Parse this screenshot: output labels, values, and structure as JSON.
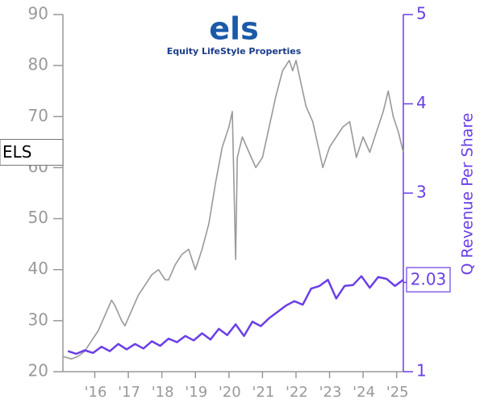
{
  "chart_data": {
    "type": "line",
    "logo_text": "els",
    "logo_subtitle": "Equity LifeStyle Properties",
    "y2label": "Q Revenue Per Share",
    "xlim": [
      2015.05,
      2025.2
    ],
    "xticks": [
      {
        "value": 2016,
        "label": "'16"
      },
      {
        "value": 2017,
        "label": "'17"
      },
      {
        "value": 2018,
        "label": "'18"
      },
      {
        "value": 2019,
        "label": "'19"
      },
      {
        "value": 2020,
        "label": "'20"
      },
      {
        "value": 2021,
        "label": "'21"
      },
      {
        "value": 2022,
        "label": "'22"
      },
      {
        "value": 2023,
        "label": "'23"
      },
      {
        "value": 2024,
        "label": "'24"
      },
      {
        "value": 2025,
        "label": "'25"
      }
    ],
    "ylim": [
      20,
      90
    ],
    "yticks": [
      20,
      30,
      40,
      50,
      60,
      70,
      80,
      90
    ],
    "y2lim": [
      1,
      5
    ],
    "y2ticks": [
      1,
      2,
      3,
      4,
      5
    ],
    "series": [
      {
        "name": "ELS",
        "color": "#999999",
        "axis": "y",
        "x": [
          2015.05,
          2015.3,
          2015.5,
          2015.7,
          2015.9,
          2016.1,
          2016.3,
          2016.5,
          2016.6,
          2016.8,
          2016.9,
          2017.1,
          2017.3,
          2017.5,
          2017.7,
          2017.9,
          2018.1,
          2018.2,
          2018.4,
          2018.6,
          2018.8,
          2019.0,
          2019.2,
          2019.4,
          2019.6,
          2019.8,
          2020.0,
          2020.1,
          2020.2,
          2020.25,
          2020.4,
          2020.6,
          2020.8,
          2021.0,
          2021.2,
          2021.4,
          2021.6,
          2021.8,
          2021.9,
          2022.0,
          2022.1,
          2022.3,
          2022.5,
          2022.7,
          2022.8,
          2023.0,
          2023.2,
          2023.4,
          2023.6,
          2023.8,
          2024.0,
          2024.2,
          2024.4,
          2024.6,
          2024.75,
          2024.9,
          2025.05,
          2025.2
        ],
        "values": [
          23,
          22.5,
          23,
          24,
          26,
          28,
          31,
          34,
          33,
          30,
          29,
          32,
          35,
          37,
          39,
          40,
          38,
          38,
          41,
          43,
          44,
          40,
          44,
          49,
          57,
          64,
          68,
          71,
          42,
          62,
          66,
          63,
          60,
          62,
          68,
          74,
          79,
          81,
          79,
          81,
          78,
          72,
          69,
          63,
          60,
          64,
          66,
          68,
          69,
          62,
          66,
          63,
          67,
          71,
          75,
          70,
          67,
          63
        ]
      },
      {
        "color": "#6a3ee8",
        "axis": "y2",
        "x": [
          2015.2,
          2015.45,
          2015.7,
          2015.95,
          2016.2,
          2016.45,
          2016.7,
          2016.95,
          2017.2,
          2017.45,
          2017.7,
          2017.95,
          2018.2,
          2018.45,
          2018.7,
          2018.95,
          2019.2,
          2019.45,
          2019.7,
          2019.95,
          2020.2,
          2020.45,
          2020.7,
          2020.95,
          2021.2,
          2021.45,
          2021.7,
          2021.95,
          2022.2,
          2022.45,
          2022.7,
          2022.95,
          2023.2,
          2023.45,
          2023.7,
          2023.95,
          2024.2,
          2024.45,
          2024.7,
          2024.95,
          2025.2
        ],
        "values": [
          1.23,
          1.2,
          1.24,
          1.21,
          1.28,
          1.23,
          1.31,
          1.25,
          1.31,
          1.26,
          1.34,
          1.29,
          1.37,
          1.33,
          1.4,
          1.35,
          1.43,
          1.36,
          1.48,
          1.41,
          1.53,
          1.4,
          1.56,
          1.51,
          1.6,
          1.67,
          1.74,
          1.79,
          1.75,
          1.93,
          1.96,
          2.03,
          1.82,
          1.96,
          1.97,
          2.07,
          1.94,
          2.06,
          2.04,
          1.96,
          2.03
        ]
      }
    ]
  }
}
